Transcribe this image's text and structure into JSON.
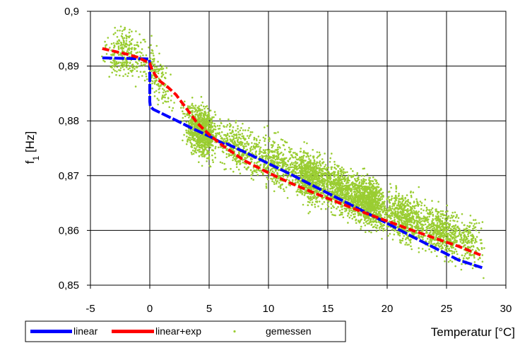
{
  "chart_data": {
    "type": "scatter",
    "title": "",
    "xlabel": "Temperatur [°C]",
    "ylabel_main": "f",
    "ylabel_sub": "1",
    "ylabel_unit": " [Hz]",
    "xlim": [
      -5,
      30
    ],
    "ylim": [
      0.85,
      0.9
    ],
    "x_ticks": [
      -5,
      0,
      5,
      10,
      15,
      20,
      25,
      30
    ],
    "x_tick_labels": [
      "-5",
      "0",
      "5",
      "10",
      "15",
      "20",
      "25",
      "30"
    ],
    "y_ticks": [
      0.85,
      0.86,
      0.87,
      0.88,
      0.89,
      0.9
    ],
    "y_tick_labels": [
      "0,85",
      "0,86",
      "0,87",
      "0,88",
      "0,89",
      "0,9"
    ],
    "grid": true,
    "legend_position": "bottom-left",
    "series": [
      {
        "name": "linear",
        "kind": "line",
        "color": "#0000ff",
        "x": [
          -4,
          -0.05,
          0,
          0,
          0.05,
          0.3,
          2.5,
          3.5,
          5,
          6.4,
          6.5,
          8,
          10,
          12,
          14,
          16,
          18,
          20,
          22,
          24,
          26,
          28
        ],
        "y": [
          0.8915,
          0.8913,
          0.8905,
          0.8835,
          0.8826,
          0.8821,
          0.8798,
          0.8787,
          0.8772,
          0.8756,
          0.8758,
          0.8743,
          0.8722,
          0.8701,
          0.8679,
          0.8657,
          0.8635,
          0.8613,
          0.859,
          0.8568,
          0.8546,
          0.8532
        ]
      },
      {
        "name": "linear+exp",
        "kind": "line",
        "color": "#ff0000",
        "x": [
          -4,
          -2,
          -1,
          0,
          0.2,
          0.7,
          1.5,
          2.2,
          3,
          4,
          5,
          6,
          8,
          10,
          12,
          14,
          16,
          18,
          20,
          22,
          24,
          26,
          28
        ],
        "y": [
          0.8932,
          0.8922,
          0.8916,
          0.8905,
          0.8893,
          0.8875,
          0.8862,
          0.8848,
          0.8825,
          0.8796,
          0.8775,
          0.8757,
          0.8727,
          0.8705,
          0.8685,
          0.8667,
          0.865,
          0.8633,
          0.8617,
          0.8601,
          0.8586,
          0.8571,
          0.8554
        ]
      },
      {
        "name": "gemessen",
        "kind": "scatter",
        "color": "#9acd32"
      }
    ]
  }
}
